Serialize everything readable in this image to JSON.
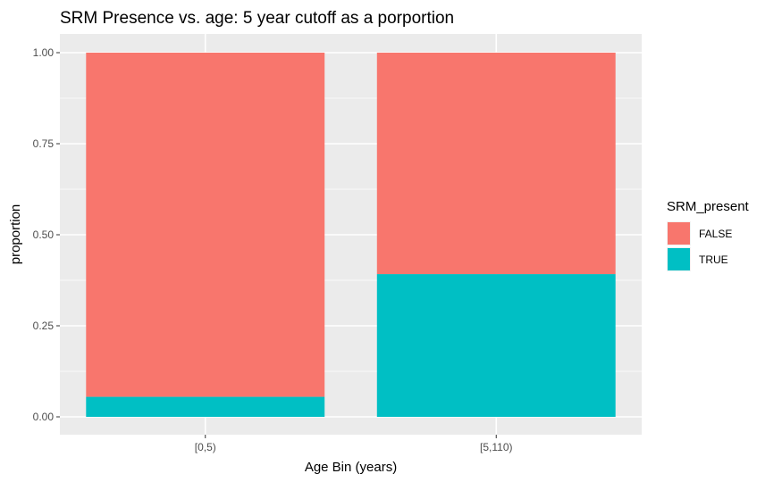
{
  "chart_data": {
    "type": "bar",
    "stacked": true,
    "title": "SRM Presence vs. age: 5 year cutoff as a porportion",
    "xlabel": "Age Bin (years)",
    "ylabel": "proportion",
    "categories": [
      "[0,5)",
      "[5,110)"
    ],
    "series": [
      {
        "name": "FALSE",
        "values": [
          0.945,
          0.608
        ],
        "color": "#f8766d"
      },
      {
        "name": "TRUE",
        "values": [
          0.055,
          0.392
        ],
        "color": "#00bfc4"
      }
    ],
    "ylim": [
      0,
      1
    ],
    "yticks": [
      0.0,
      0.25,
      0.5,
      0.75,
      1.0
    ],
    "ytick_labels": [
      "0.00",
      "0.25",
      "0.50",
      "0.75",
      "1.00"
    ],
    "grid": true,
    "legend": {
      "title": "SRM_present",
      "position": "right"
    },
    "panel_background": "#ebebeb"
  }
}
